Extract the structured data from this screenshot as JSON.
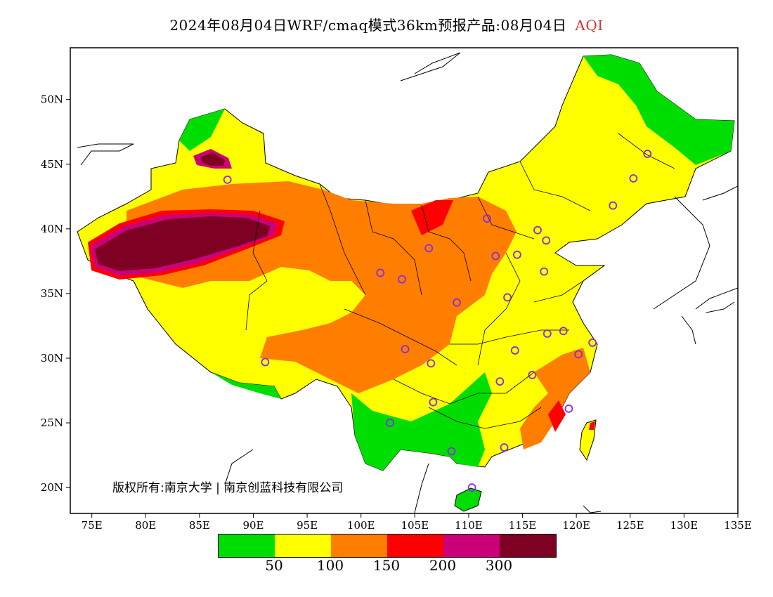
{
  "title": {
    "text": "2024年08月04日WRF/cmaq模式36km预报产品:08月04日",
    "variable": "AQI"
  },
  "copyright": "版权所有:南京大学 | 南京创蓝科技有限公司",
  "axes": {
    "x_ticks": [
      "75E",
      "80E",
      "85E",
      "90E",
      "95E",
      "100E",
      "105E",
      "110E",
      "115E",
      "120E",
      "125E",
      "130E",
      "135E"
    ],
    "y_ticks": [
      "20N",
      "25N",
      "30N",
      "35N",
      "40N",
      "45N",
      "50N"
    ],
    "lon_range": [
      73,
      135
    ],
    "lat_range": [
      18,
      54
    ]
  },
  "legend": {
    "colors": [
      "#00dd00",
      "#ffff00",
      "#ff7e00",
      "#ff0000",
      "#cc0077",
      "#7e0023"
    ],
    "labels": [
      "50",
      "100",
      "150",
      "200",
      "300"
    ]
  },
  "cities": [
    {
      "lon": 87.6,
      "lat": 43.8
    },
    {
      "lon": 91.1,
      "lat": 29.7
    },
    {
      "lon": 101.8,
      "lat": 36.6
    },
    {
      "lon": 103.8,
      "lat": 36.1
    },
    {
      "lon": 106.3,
      "lat": 38.5
    },
    {
      "lon": 111.7,
      "lat": 40.8
    },
    {
      "lon": 112.5,
      "lat": 37.9
    },
    {
      "lon": 114.5,
      "lat": 38.0
    },
    {
      "lon": 116.4,
      "lat": 39.9
    },
    {
      "lon": 117.2,
      "lat": 39.1
    },
    {
      "lon": 117.0,
      "lat": 36.7
    },
    {
      "lon": 113.6,
      "lat": 34.7
    },
    {
      "lon": 108.9,
      "lat": 34.3
    },
    {
      "lon": 104.1,
      "lat": 30.7
    },
    {
      "lon": 106.5,
      "lat": 29.6
    },
    {
      "lon": 106.7,
      "lat": 26.6
    },
    {
      "lon": 102.7,
      "lat": 25.0
    },
    {
      "lon": 108.4,
      "lat": 22.8
    },
    {
      "lon": 113.3,
      "lat": 23.1
    },
    {
      "lon": 110.3,
      "lat": 20.0
    },
    {
      "lon": 112.9,
      "lat": 28.2
    },
    {
      "lon": 114.3,
      "lat": 30.6
    },
    {
      "lon": 115.9,
      "lat": 28.7
    },
    {
      "lon": 117.3,
      "lat": 31.9
    },
    {
      "lon": 118.8,
      "lat": 32.1
    },
    {
      "lon": 120.2,
      "lat": 30.3
    },
    {
      "lon": 121.5,
      "lat": 31.2
    },
    {
      "lon": 119.3,
      "lat": 26.1
    },
    {
      "lon": 123.4,
      "lat": 41.8
    },
    {
      "lon": 125.3,
      "lat": 43.9
    },
    {
      "lon": 126.6,
      "lat": 45.8
    }
  ]
}
